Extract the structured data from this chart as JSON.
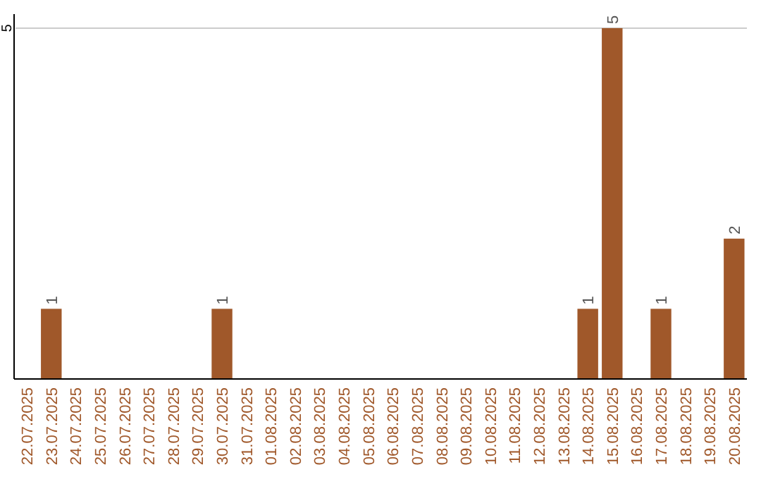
{
  "chart_data": {
    "type": "bar",
    "categories": [
      "22.07.2025",
      "23.07.2025",
      "24.07.2025",
      "25.07.2025",
      "26.07.2025",
      "27.07.2025",
      "28.07.2025",
      "29.07.2025",
      "30.07.2025",
      "31.07.2025",
      "01.08.2025",
      "02.08.2025",
      "03.08.2025",
      "04.08.2025",
      "05.08.2025",
      "06.08.2025",
      "07.08.2025",
      "08.08.2025",
      "09.08.2025",
      "10.08.2025",
      "11.08.2025",
      "12.08.2025",
      "13.08.2025",
      "14.08.2025",
      "15.08.2025",
      "16.08.2025",
      "17.08.2025",
      "18.08.2025",
      "19.08.2025",
      "20.08.2025"
    ],
    "values": [
      0,
      1,
      0,
      0,
      0,
      0,
      0,
      0,
      1,
      0,
      0,
      0,
      0,
      0,
      0,
      0,
      0,
      0,
      0,
      0,
      0,
      0,
      0,
      1,
      5,
      0,
      1,
      0,
      0,
      2
    ],
    "value_labels": [
      null,
      "1",
      null,
      null,
      null,
      null,
      null,
      null,
      "1",
      null,
      null,
      null,
      null,
      null,
      null,
      null,
      null,
      null,
      null,
      null,
      null,
      null,
      null,
      "1",
      "5",
      null,
      "1",
      null,
      null,
      "2"
    ],
    "color": "#a0582a",
    "ylim": [
      0,
      5.2
    ],
    "yticks": [
      5
    ],
    "grid": "y"
  }
}
